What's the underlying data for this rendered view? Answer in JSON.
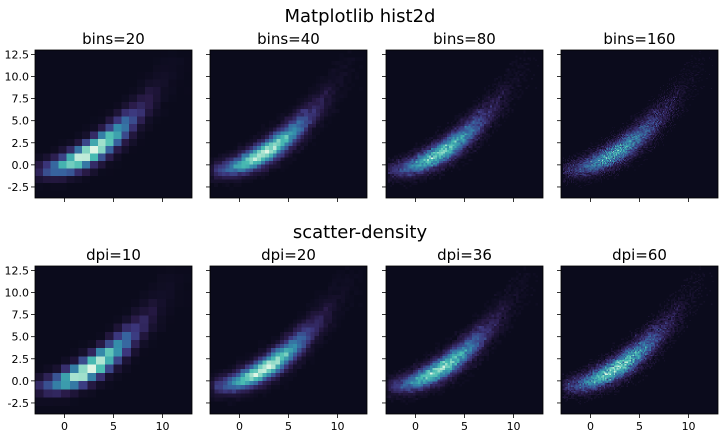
{
  "chart_data": {
    "type": "heatmap",
    "colormap": "mako",
    "background_color": "#0b0b1c",
    "xlim": [
      -3,
      13
    ],
    "ylim": [
      -3.75,
      13
    ],
    "xticks": [
      "0",
      "5",
      "10"
    ],
    "xtick_values": [
      0,
      5,
      10
    ],
    "yticks": [
      "-2.5",
      "0.0",
      "2.5",
      "5.0",
      "7.5",
      "10.0",
      "12.5"
    ],
    "ytick_values": [
      -2.5,
      0,
      2.5,
      5,
      7.5,
      10,
      12.5
    ],
    "data_shape": {
      "description": "curved band y ≈ 0.05·x² + 0.4·x",
      "x_range": [
        -2.5,
        12
      ],
      "y_range": [
        -2.5,
        12
      ]
    },
    "rows": [
      {
        "title": "Matplotlib hist2d",
        "panels": [
          {
            "title": "bins=20",
            "resolution": 20
          },
          {
            "title": "bins=40",
            "resolution": 40
          },
          {
            "title": "bins=80",
            "resolution": 80
          },
          {
            "title": "bins=160",
            "resolution": 160
          }
        ]
      },
      {
        "title": "scatter-density",
        "panels": [
          {
            "title": "dpi=10",
            "resolution": 18
          },
          {
            "title": "dpi=20",
            "resolution": 36
          },
          {
            "title": "dpi=36",
            "resolution": 64
          },
          {
            "title": "dpi=60",
            "resolution": 110
          }
        ]
      }
    ]
  }
}
